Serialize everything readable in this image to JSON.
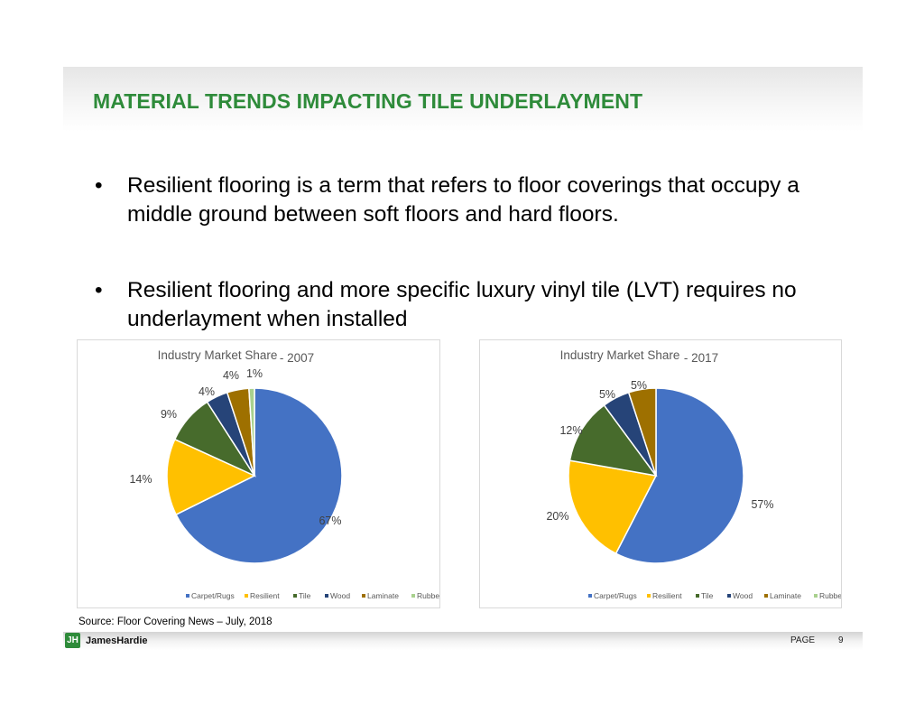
{
  "title": "MATERIAL TRENDS IMPACTING TILE UNDERLAYMENT",
  "bullets": [
    "Resilient flooring is a term that refers to floor coverings that occupy a middle ground between soft floors and hard floors.",
    "Resilient flooring and more specific luxury vinyl tile (LVT) requires no underlayment when installed"
  ],
  "bullet_symbol": "•",
  "source": "Source: Floor Covering News – July, 2018",
  "footer": {
    "logo": "JamesHardie",
    "page_label": "PAGE",
    "page_number": "9"
  },
  "colors": {
    "title": "#2E8B3A",
    "Carpet/Rugs": "#4472C4",
    "Resilient": "#FFC000",
    "Tile": "#476B2C",
    "Wood": "#264478",
    "Laminate": "#9E7000",
    "Rubber": "#A9D18E"
  },
  "chart_data": [
    {
      "type": "pie",
      "title": "Industry Market Share",
      "title_suffix": "- 2007",
      "categories": [
        "Carpet/Rugs",
        "Resilient",
        "Tile",
        "Wood",
        "Laminate",
        "Rubber"
      ],
      "values": [
        67,
        14,
        9,
        4,
        4,
        1
      ],
      "data_labels": [
        "67%",
        "14%",
        "9%",
        "4%",
        "4%",
        "1%"
      ],
      "legend_position": "bottom"
    },
    {
      "type": "pie",
      "title": "Industry Market Share",
      "title_suffix": "- 2017",
      "categories": [
        "Carpet/Rugs",
        "Resilient",
        "Tile",
        "Wood",
        "Laminate",
        "Rubber"
      ],
      "values": [
        57,
        20,
        12,
        5,
        5,
        0
      ],
      "data_labels": [
        "57%",
        "20%",
        "12%",
        "5%",
        "5%",
        ""
      ],
      "legend_position": "bottom"
    }
  ]
}
